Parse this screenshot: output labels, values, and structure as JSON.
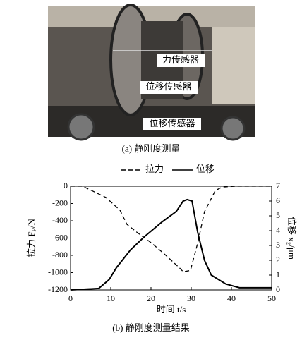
{
  "figure": {
    "photo_labels": [
      "力传感器",
      "位移传感器",
      "位移传感器"
    ],
    "caption_a": "(a) 静刚度测量",
    "caption_b": "(b) 静刚度测量结果"
  },
  "chart_data": {
    "type": "line",
    "xlabel": "时间 t/s",
    "ylabel": "拉力 Fₚ/N",
    "y2label": "位移 x₂/μm",
    "xlim": [
      0,
      50
    ],
    "xticks": [
      0,
      10,
      20,
      30,
      40,
      50
    ],
    "ylim": [
      -1200,
      0
    ],
    "yticks": [
      0,
      -200,
      -400,
      -600,
      -800,
      -1000,
      -1200
    ],
    "y2lim": [
      0,
      7
    ],
    "y2ticks": [
      0,
      1,
      2,
      3,
      4,
      5,
      6,
      7
    ],
    "series": [
      {
        "name": "拉力",
        "color": "#000000",
        "line_style": "dashed",
        "x": [
          0,
          3,
          8.8,
          12.3,
          14,
          16.7,
          20.2,
          23.7,
          27.2,
          28,
          29.8,
          31.6,
          33.3,
          36,
          37.7,
          41,
          50
        ],
        "values": [
          0,
          0,
          -130,
          -278,
          -440,
          -540,
          -660,
          -800,
          -950,
          -990,
          -975,
          -660,
          -295,
          -50,
          -10,
          0,
          0
        ]
      },
      {
        "name": "位移",
        "color": "#000000",
        "line_style": "solid",
        "axis": "y2",
        "x": [
          0,
          7,
          9.6,
          11.4,
          14.9,
          18.4,
          22.8,
          26.3,
          28,
          29,
          30.2,
          31.6,
          33.3,
          35,
          38.6,
          42,
          50
        ],
        "values": [
          0,
          0.1,
          0.7,
          1.5,
          2.7,
          3.6,
          4.6,
          5.3,
          6.0,
          6.1,
          6.0,
          3.9,
          2.0,
          1.0,
          0.4,
          0.15,
          0.15
        ]
      }
    ]
  }
}
